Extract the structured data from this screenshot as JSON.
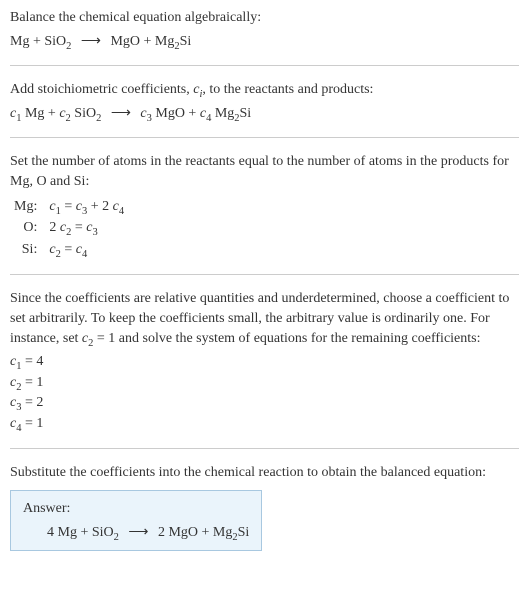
{
  "colors": {
    "text": "#333333",
    "divider": "#cccccc",
    "answer_bg": "#eaf4fb",
    "answer_border": "#a8c8e0"
  },
  "typography": {
    "base_fontsize": 14,
    "font_family": "Georgia, Times New Roman, serif"
  },
  "section1": {
    "intro": "Balance the chemical equation algebraically:",
    "eq_lhs1": "Mg + SiO",
    "eq_sub1": "2",
    "eq_arrow": "⟶",
    "eq_rhs1": "MgO + Mg",
    "eq_sub2": "2",
    "eq_rhs2": "Si"
  },
  "section2": {
    "intro_a": "Add stoichiometric coefficients, ",
    "intro_ci": "c",
    "intro_i": "i",
    "intro_b": ", to the reactants and products:",
    "c1": "c",
    "s1": "1",
    "t1": " Mg + ",
    "c2": "c",
    "s2": "2",
    "t2": " SiO",
    "t2sub": "2",
    "arrow": "⟶",
    "c3": "c",
    "s3": "3",
    "t3": " MgO + ",
    "c4": "c",
    "s4": "4",
    "t4": " Mg",
    "t4sub": "2",
    "t5": "Si"
  },
  "section3": {
    "intro": "Set the number of atoms in the reactants equal to the number of atoms in the products for Mg, O and Si:",
    "rows": [
      {
        "element": "Mg:",
        "lhs_c": "c",
        "lhs_s": "1",
        "eq": " = ",
        "r1_c": "c",
        "r1_s": "3",
        "plus": " + 2 ",
        "r2_c": "c",
        "r2_s": "4"
      },
      {
        "element": "O:",
        "lhs_pre": "2 ",
        "lhs_c": "c",
        "lhs_s": "2",
        "eq": " = ",
        "r1_c": "c",
        "r1_s": "3"
      },
      {
        "element": "Si:",
        "lhs_c": "c",
        "lhs_s": "2",
        "eq": " = ",
        "r1_c": "c",
        "r1_s": "4"
      }
    ]
  },
  "section4": {
    "intro_a": "Since the coefficients are relative quantities and underdetermined, choose a coefficient to set arbitrarily. To keep the coefficients small, the arbitrary value is ordinarily one. For instance, set ",
    "intro_c": "c",
    "intro_s": "2",
    "intro_b": " = 1 and solve the system of equations for the remaining coefficients:",
    "coeffs": [
      {
        "c": "c",
        "s": "1",
        "eq": " = ",
        "v": "4"
      },
      {
        "c": "c",
        "s": "2",
        "eq": " = ",
        "v": "1"
      },
      {
        "c": "c",
        "s": "3",
        "eq": " = ",
        "v": "2"
      },
      {
        "c": "c",
        "s": "4",
        "eq": " = ",
        "v": "1"
      }
    ]
  },
  "section5": {
    "intro": "Substitute the coefficients into the chemical reaction to obtain the balanced equation:",
    "answer_label": "Answer:",
    "eq_lhs": "4 Mg + SiO",
    "eq_sub1": "2",
    "arrow": "⟶",
    "eq_mid": "2 MgO + Mg",
    "eq_sub2": "2",
    "eq_rhs": "Si"
  }
}
